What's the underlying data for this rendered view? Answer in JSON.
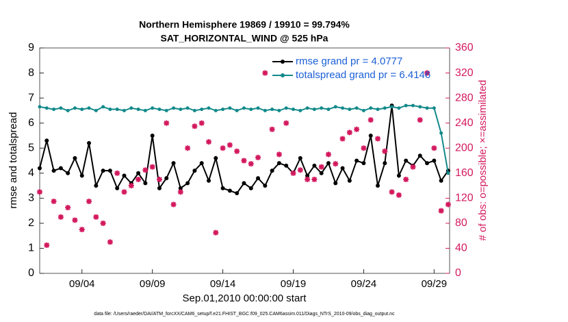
{
  "chart_data": {
    "type": "line",
    "title": "Northern Hemisphere 19869 / 19910 = 99.794%",
    "subtitle": "SAT_HORIZONTAL_WIND @ 525 hPa",
    "xlabel": "Sep.01,2010 00:00:00 start",
    "ylabel": "rmse and totalspread",
    "y2label": "# of obs: o=possible; ×=assimilated",
    "footnote": "data file: /Users/raeder/DAI/ATM_forcXX/CAM6_setup/f.e21.FHIST_BGC.f09_025.CAM6assim.011/Diags_NTrS_2010-09/obs_diag_output.nc",
    "x": [
      0,
      0.5,
      1,
      1.5,
      2,
      2.5,
      3,
      3.5,
      4,
      4.5,
      5,
      5.5,
      6,
      6.5,
      7,
      7.5,
      8,
      8.5,
      9,
      9.5,
      10,
      10.5,
      11,
      11.5,
      12,
      12.5,
      13,
      13.5,
      14,
      14.5,
      15,
      15.5,
      16,
      16.5,
      17,
      17.5,
      18,
      18.5,
      19,
      19.5,
      20,
      20.5,
      21,
      21.5,
      22,
      22.5,
      23,
      23.5,
      24,
      24.5,
      25,
      25.5,
      26,
      26.5,
      27,
      27.5,
      28,
      28.5,
      29
    ],
    "xlim": [
      0,
      29.1
    ],
    "xticks": [
      {
        "value": 3,
        "label": "09/04"
      },
      {
        "value": 8,
        "label": "09/09"
      },
      {
        "value": 13,
        "label": "09/14"
      },
      {
        "value": 18,
        "label": "09/19"
      },
      {
        "value": 23,
        "label": "09/24"
      },
      {
        "value": 28,
        "label": "09/29"
      }
    ],
    "ylim": [
      0,
      9
    ],
    "yticks": [
      0,
      1,
      2,
      3,
      4,
      5,
      6,
      7,
      8,
      9
    ],
    "y2lim": [
      0,
      360
    ],
    "y2ticks": [
      0,
      40,
      80,
      120,
      160,
      200,
      240,
      280,
      320,
      360
    ],
    "legend": "upper right",
    "series": [
      {
        "name": "rmse grand pr = 4.0777",
        "color": "#000000",
        "values": [
          4.2,
          5.3,
          4.1,
          4.2,
          4.0,
          4.6,
          3.9,
          5.2,
          3.5,
          4.1,
          4.1,
          3.4,
          3.9,
          3.6,
          4.0,
          3.6,
          5.5,
          3.4,
          3.8,
          4.4,
          3.4,
          3.6,
          4.1,
          4.4,
          3.7,
          4.6,
          3.4,
          3.3,
          3.2,
          3.6,
          3.4,
          3.8,
          3.5,
          4.1,
          4.4,
          4.3,
          4.0,
          4.6,
          3.9,
          4.3,
          4.0,
          4.4,
          3.6,
          4.2,
          3.7,
          4.5,
          4.4,
          5.5,
          3.5,
          4.4,
          6.7,
          3.9,
          4.5,
          4.3,
          4.7,
          4.4,
          4.5,
          3.7,
          4.1
        ]
      },
      {
        "name": "totalspread grand pr = 6.4146",
        "color": "#12898a",
        "values": [
          6.65,
          6.6,
          6.55,
          6.6,
          6.5,
          6.6,
          6.55,
          6.6,
          6.5,
          6.65,
          6.55,
          6.55,
          6.5,
          6.6,
          6.55,
          6.5,
          6.6,
          6.55,
          6.5,
          6.6,
          6.55,
          6.6,
          6.5,
          6.55,
          6.6,
          6.5,
          6.55,
          6.6,
          6.5,
          6.6,
          6.55,
          6.6,
          6.5,
          6.55,
          6.5,
          6.6,
          6.55,
          6.5,
          6.6,
          6.55,
          6.6,
          6.55,
          6.65,
          6.6,
          6.55,
          6.6,
          6.5,
          6.6,
          6.55,
          6.6,
          6.65,
          6.6,
          6.7,
          6.7,
          6.65,
          6.6,
          6.6,
          5.6,
          4.0
        ]
      },
      {
        "color": "#d3195e",
        "axis": "y2",
        "values": [
          130,
          45,
          115,
          90,
          105,
          85,
          70,
          115,
          90,
          80,
          50,
          160,
          130,
          140,
          150,
          165,
          170,
          150,
          240,
          110,
          130,
          200,
          235,
          240,
          210,
          65,
          200,
          205,
          195,
          180,
          175,
          185,
          320,
          230,
          190,
          240,
          160,
          165,
          150,
          150,
          170,
          190,
          175,
          215,
          225,
          230,
          200,
          245,
          215,
          195,
          130,
          125,
          150,
          170,
          245,
          320,
          200,
          100,
          110
        ]
      }
    ]
  }
}
